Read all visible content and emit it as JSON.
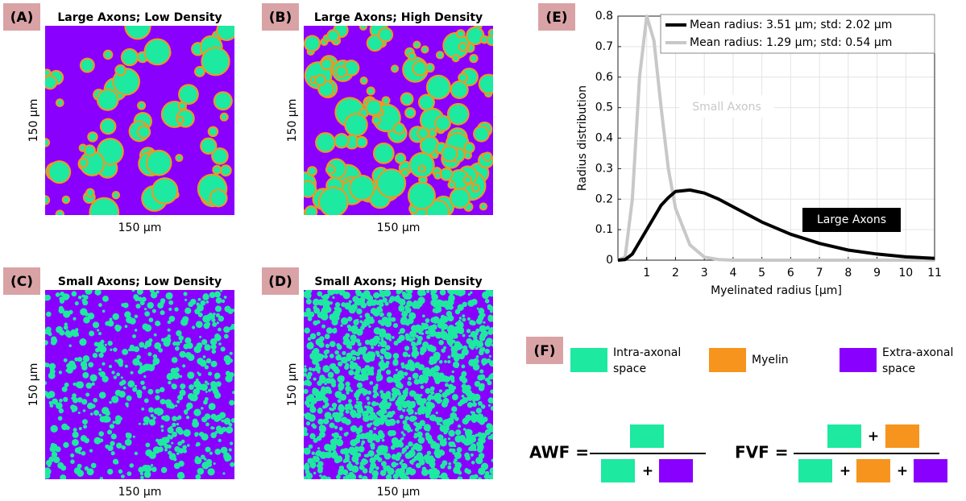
{
  "panels": [
    {
      "label": "(A)",
      "title": "Large Axons; Low Density",
      "xlabel": "150 μm",
      "ylabel": "150 μm"
    },
    {
      "label": "(B)",
      "title": "Large Axons; High Density",
      "xlabel": "150 μm",
      "ylabel": "150 μm"
    },
    {
      "label": "(C)",
      "title": "Small Axons; Low Density",
      "xlabel": "150 μm",
      "ylabel": "150 μm"
    },
    {
      "label": "(D)",
      "title": "Small Axons; High Density",
      "xlabel": "150 μm",
      "ylabel": "150 μm"
    }
  ],
  "chart_data": {
    "type": "line",
    "panel_label": "(E)",
    "xlabel": "Myelinated radius  [μm]",
    "ylabel": "Radius distribution",
    "x": [
      0,
      0.25,
      0.5,
      0.75,
      1,
      1.25,
      1.5,
      1.75,
      2,
      2.5,
      3,
      3.5,
      4,
      5,
      6,
      7,
      8,
      9,
      10,
      11
    ],
    "series": [
      {
        "name": "Mean radius: 3.51 μm; std: 2.02 μm",
        "color": "#000000",
        "values": [
          0,
          0.002,
          0.02,
          0.06,
          0.1,
          0.14,
          0.18,
          0.205,
          0.225,
          0.23,
          0.22,
          0.2,
          0.175,
          0.125,
          0.085,
          0.055,
          0.033,
          0.02,
          0.011,
          0.006
        ]
      },
      {
        "name": "Mean radius: 1.29 μm; std: 0.54 μm",
        "color": "#c8c8c8",
        "values": [
          0,
          0.01,
          0.2,
          0.6,
          0.8,
          0.72,
          0.5,
          0.3,
          0.17,
          0.05,
          0.01,
          0.002,
          0,
          0,
          0,
          0,
          0,
          0,
          0,
          0
        ]
      }
    ],
    "annotations": [
      {
        "text": "Small Axons"
      },
      {
        "text": "Large Axons"
      }
    ],
    "xlim": [
      0,
      11
    ],
    "xticks": [
      1,
      2,
      3,
      4,
      5,
      6,
      7,
      8,
      9,
      10,
      11
    ],
    "ylim": [
      0,
      0.8
    ],
    "yticks": [
      0,
      0.1,
      0.2,
      0.3,
      0.4,
      0.5,
      0.6,
      0.7,
      0.8
    ],
    "grid": true,
    "legend": "top-right"
  },
  "legend_panel": {
    "label": "(F)",
    "items": [
      {
        "lines": [
          "Intra-axonal",
          "space"
        ],
        "color": "#1de9a0"
      },
      {
        "lines": [
          "Myelin"
        ],
        "color": "#f7941d"
      },
      {
        "lines": [
          "Extra-axonal",
          "space"
        ],
        "color": "#8a00ff"
      }
    ],
    "awf": "AWF =",
    "fvf": "FVF =",
    "plus": "+"
  }
}
